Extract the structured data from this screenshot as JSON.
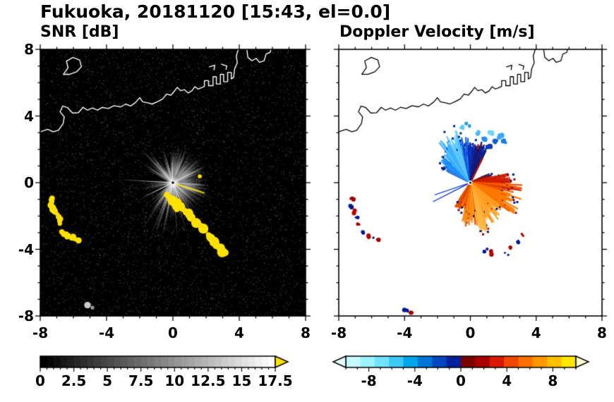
{
  "figure_title": "Fukuoka, 20181120 [15:43, el=0.0]",
  "panels": [
    {
      "id": "snr",
      "title": "SNR [dB]",
      "x_ticks": [
        {
          "label": "-8",
          "value": -8
        },
        {
          "label": "-4",
          "value": -4
        },
        {
          "label": "0",
          "value": 0
        },
        {
          "label": "4",
          "value": 4
        },
        {
          "label": "8",
          "value": 8
        }
      ],
      "y_ticks": [
        {
          "label": "8",
          "value": 8
        },
        {
          "label": "4",
          "value": 4
        },
        {
          "label": "0",
          "value": 0
        },
        {
          "label": "-4",
          "value": -4
        },
        {
          "label": "-8",
          "value": -8
        }
      ],
      "colorbar": {
        "min": 0,
        "max": 17.5,
        "minor_step": 0.5,
        "style": "grayscale",
        "ticks": [
          {
            "label": "0",
            "value": 0
          },
          {
            "label": "2.5",
            "value": 2.5
          },
          {
            "label": "5",
            "value": 5
          },
          {
            "label": "7.5",
            "value": 7.5
          },
          {
            "label": "10",
            "value": 10
          },
          {
            "label": "12.5",
            "value": 12.5
          },
          {
            "label": "15",
            "value": 15
          },
          {
            "label": "17.5",
            "value": 17.5
          }
        ],
        "over_arrow_color": "#ffe100"
      }
    },
    {
      "id": "doppler",
      "title": "Doppler Velocity [m/s]",
      "x_ticks": [
        {
          "label": "-8",
          "value": -8
        },
        {
          "label": "-4",
          "value": -4
        },
        {
          "label": "0",
          "value": 0
        },
        {
          "label": "4",
          "value": 4
        },
        {
          "label": "8",
          "value": 8
        }
      ],
      "y_ticks": [],
      "colorbar": {
        "min": -10,
        "max": 10,
        "minor_step": 1,
        "style": "segmented",
        "ticks": [
          {
            "label": "-8",
            "value": -8
          },
          {
            "label": "-4",
            "value": -4
          },
          {
            "label": "0",
            "value": 0
          },
          {
            "label": "4",
            "value": 4
          },
          {
            "label": "8",
            "value": 8
          }
        ],
        "segment_colors": [
          "#c8fbff",
          "#9ef2ff",
          "#6fe3ff",
          "#3ec9f5",
          "#00a6e8",
          "#0077d8",
          "#0047c0",
          "#001f9e",
          "#7a0000",
          "#a80000",
          "#d81800",
          "#f04800",
          "#ff7000",
          "#ff9800",
          "#ffc000",
          "#ffe800"
        ],
        "under_arrow_color": "#e8feff",
        "over_arrow_color": "#fffbd2"
      }
    }
  ],
  "map_overlay": {
    "coastline_paths": [
      [
        [
          -8,
          3.05
        ],
        [
          -7.55,
          3.2
        ],
        [
          -7.2,
          3.05
        ],
        [
          -6.9,
          3.15
        ],
        [
          -6.62,
          3.55
        ],
        [
          -6.55,
          3.95
        ],
        [
          -6.8,
          4.25
        ],
        [
          -6.65,
          4.6
        ],
        [
          -6.35,
          4.5
        ],
        [
          -6.05,
          4.18
        ],
        [
          -5.7,
          4.2
        ],
        [
          -5.42,
          4.52
        ],
        [
          -5.15,
          4.35
        ],
        [
          -4.85,
          4.48
        ],
        [
          -4.55,
          4.35
        ],
        [
          -4.25,
          4.52
        ],
        [
          -3.9,
          4.45
        ],
        [
          -3.55,
          4.62
        ],
        [
          -3.15,
          4.55
        ],
        [
          -2.85,
          4.72
        ],
        [
          -2.55,
          4.6
        ],
        [
          -2.25,
          4.82
        ],
        [
          -2.0,
          5.1
        ],
        [
          -1.82,
          4.85
        ],
        [
          -1.55,
          4.8
        ],
        [
          -1.25,
          4.72
        ],
        [
          -0.95,
          4.85
        ],
        [
          -0.62,
          5.02
        ],
        [
          -0.38,
          5.32
        ],
        [
          -0.12,
          5.25
        ],
        [
          0.08,
          5.48
        ],
        [
          0.26,
          5.72
        ],
        [
          0.46,
          5.52
        ],
        [
          0.7,
          5.58
        ],
        [
          0.92,
          5.38
        ],
        [
          1.15,
          5.52
        ],
        [
          1.32,
          5.76
        ],
        [
          1.52,
          5.62
        ],
        [
          1.72,
          5.7
        ],
        [
          1.9,
          5.78
        ],
        [
          1.9,
          6.12
        ],
        [
          2.15,
          6.12
        ],
        [
          2.15,
          5.82
        ],
        [
          2.42,
          5.82
        ],
        [
          2.42,
          6.36
        ],
        [
          2.62,
          6.36
        ],
        [
          2.62,
          5.92
        ],
        [
          2.86,
          5.92
        ],
        [
          2.86,
          6.5
        ],
        [
          3.06,
          6.5
        ],
        [
          3.06,
          6.06
        ],
        [
          3.3,
          6.06
        ],
        [
          3.3,
          6.62
        ],
        [
          3.52,
          6.62
        ],
        [
          3.52,
          6.22
        ],
        [
          3.66,
          6.32
        ],
        [
          3.72,
          6.82
        ],
        [
          3.88,
          7.2
        ],
        [
          3.82,
          7.6
        ],
        [
          3.96,
          8.05
        ]
      ],
      [
        [
          -6.6,
          6.5
        ],
        [
          -6.32,
          6.9
        ],
        [
          -6.42,
          7.3
        ],
        [
          -6.02,
          7.52
        ],
        [
          -5.62,
          7.36
        ],
        [
          -5.52,
          6.96
        ],
        [
          -5.8,
          6.66
        ],
        [
          -6.22,
          6.5
        ],
        [
          -6.6,
          6.5
        ]
      ],
      [
        [
          4.45,
          8.05
        ],
        [
          4.52,
          7.52
        ],
        [
          4.76,
          7.32
        ],
        [
          5.02,
          7.46
        ],
        [
          5.22,
          7.22
        ],
        [
          5.5,
          7.32
        ],
        [
          5.62,
          7.72
        ],
        [
          5.86,
          7.82
        ],
        [
          5.92,
          8.05
        ]
      ],
      [
        [
          2.2,
          6.95
        ],
        [
          2.52,
          7.05
        ],
        [
          2.48,
          6.78
        ]
      ],
      [
        [
          2.95,
          7.1
        ],
        [
          3.25,
          7.0
        ],
        [
          3.2,
          6.8
        ]
      ]
    ]
  },
  "chart_data": [
    {
      "type": "heatmap",
      "title": "SNR [dB]",
      "xlim": [
        -8,
        8
      ],
      "ylim": [
        -8,
        8
      ],
      "x_tick_values": [
        -8,
        -4,
        0,
        4,
        8
      ],
      "y_tick_values": [
        -8,
        -4,
        0,
        4,
        8
      ],
      "radar_center": [
        0,
        0
      ],
      "colorbar": {
        "min": 0,
        "max": 17.5,
        "major_ticks": [
          0,
          2.5,
          5,
          7.5,
          10,
          12.5,
          15,
          17.5
        ],
        "colormap": "black-to-white grayscale, yellow over-range arrow"
      },
      "description": "Radar PPI of SNR at elevation 0.0 deg: grayscale echo fan radiating from the radar at (0,0) over a black speckle-noise background; saturated yellow ground-clutter arcs southeast of the radar from about (-0.4,-0.8) to (3.2,-4.3) and to the west near (-7.3,-1) to (-5.6,-3.4); coastline drawn in white along the north.",
      "clutter_chains": [
        {
          "pts": [
            [
              -0.4,
              -0.75
            ],
            [
              0.0,
              -1.05
            ],
            [
              0.35,
              -1.3
            ],
            [
              0.7,
              -1.6
            ],
            [
              1.0,
              -1.95
            ],
            [
              1.3,
              -2.3
            ],
            [
              1.6,
              -2.55
            ],
            [
              1.95,
              -2.9
            ],
            [
              2.3,
              -3.3
            ],
            [
              2.6,
              -3.7
            ],
            [
              2.9,
              -4.05
            ],
            [
              3.15,
              -4.25
            ]
          ],
          "w": 0.24
        },
        {
          "pts": [
            [
              0.05,
              -1.35
            ],
            [
              0.3,
              -1.62
            ]
          ],
          "w": 0.16
        },
        {
          "pts": [
            [
              -7.25,
              -0.95
            ],
            [
              -7.38,
              -1.3
            ],
            [
              -7.2,
              -1.65
            ],
            [
              -6.95,
              -1.9
            ],
            [
              -6.8,
              -2.2
            ],
            [
              -6.85,
              -2.5
            ]
          ],
          "w": 0.17
        },
        {
          "pts": [
            [
              -6.7,
              -3.0
            ],
            [
              -6.4,
              -3.2
            ],
            [
              -6.1,
              -3.25
            ],
            [
              -5.85,
              -3.45
            ],
            [
              -5.6,
              -3.4
            ]
          ],
          "w": 0.15
        }
      ],
      "spots": [
        {
          "x": 1.62,
          "y": 0.38,
          "r": 0.12,
          "color": "#ffe100"
        },
        {
          "x": -5.15,
          "y": -7.35,
          "r": 0.2,
          "color": "#cccccc"
        },
        {
          "x": -4.85,
          "y": -7.5,
          "r": 0.11,
          "color": "#999999"
        }
      ],
      "yellow_ray": {
        "a0": {
          "x": 0.25,
          "y": -0.1
        },
        "a1": {
          "x": 1.9,
          "y": -0.62
        }
      }
    },
    {
      "type": "heatmap",
      "title": "Doppler Velocity [m/s]",
      "xlim": [
        -8,
        8
      ],
      "ylim": [
        -8,
        8
      ],
      "x_tick_values": [
        -8,
        -4,
        0,
        4,
        8
      ],
      "y_tick_values": [
        -8,
        -4,
        0,
        4,
        8
      ],
      "radar_center": [
        0,
        0
      ],
      "colorbar": {
        "min": -10,
        "max": 10,
        "major_ticks": [
          -8,
          -4,
          0,
          4,
          8
        ],
        "colormap": "pale-cyan/blue/navy for negative velocities, dark-red/red/orange/yellow for positive"
      },
      "description": "Doppler velocity fan: negative (light blue to navy, roughly -2 to -7 m/s) echoes north to northwest of the radar with darkest navy just east of north; positive (red through orange to yellow, roughly +3 to +9 m/s) echoes east through south; near-zero clutter specks (alternating dark red / navy) west and south-southeast matching the SNR clutter; coastline in black.",
      "sectors": [
        {
          "a0": 296,
          "a1": 305,
          "color": "#2f7de0",
          "rMax": 1.7
        },
        {
          "a0": 305,
          "a1": 317,
          "color": "#1e90ff",
          "rMax": 2.3
        },
        {
          "a0": 317,
          "a1": 333,
          "color": "#3fb2ff",
          "rMax": 3.0
        },
        {
          "a0": 333,
          "a1": 347,
          "color": "#63ccff",
          "rMax": 3.15
        },
        {
          "a0": 347,
          "a1": 357,
          "color": "#1565e8",
          "rMax": 2.6
        },
        {
          "a0": 357,
          "a1": 369,
          "color": "#0a2cb0",
          "rMax": 2.25
        },
        {
          "a0": 369,
          "a1": 387,
          "color": "#061a80",
          "rMax": 2.35
        },
        {
          "a0": 64,
          "a1": 76,
          "color": "#b01000",
          "rMax": 1.3
        },
        {
          "a0": 76,
          "a1": 92,
          "color": "#d02000",
          "rMax": 2.3
        },
        {
          "a0": 92,
          "a1": 106,
          "color": "#f25500",
          "rMax": 2.9
        },
        {
          "a0": 106,
          "a1": 128,
          "color": "#ff7d00",
          "rMax": 3.0
        },
        {
          "a0": 128,
          "a1": 150,
          "color": "#ffa125",
          "rMax": 2.6
        },
        {
          "a0": 150,
          "a1": 170,
          "color": "#ffb640",
          "rMax": 2.9
        },
        {
          "a0": 170,
          "a1": 192,
          "color": "#ff8d10",
          "rMax": 2.45
        },
        {
          "a0": 192,
          "a1": 214,
          "color": "#e85000",
          "rMax": 1.6
        }
      ],
      "fragments": [
        {
          "x": 0.55,
          "y": 3.0,
          "c": "#45b8ff"
        },
        {
          "x": 0.9,
          "y": 2.7,
          "c": "#2090ff"
        },
        {
          "x": 1.25,
          "y": 2.95,
          "c": "#70d4ff"
        },
        {
          "x": 1.5,
          "y": 2.5,
          "c": "#1060d0"
        },
        {
          "x": 1.85,
          "y": 2.75,
          "c": "#3aa8ff"
        },
        {
          "x": 2.1,
          "y": 2.45,
          "c": "#1878e8"
        },
        {
          "x": 1.15,
          "y": 2.2,
          "c": "#0a38b8"
        },
        {
          "x": -0.5,
          "y": 3.25,
          "c": "#55c8ff"
        },
        {
          "x": -0.15,
          "y": 3.45,
          "c": "#2a9ae8"
        }
      ],
      "specks": [
        {
          "x": -7.2,
          "y": -1.0,
          "c": "#a80000"
        },
        {
          "x": -7.32,
          "y": -1.4,
          "c": "#001a90"
        },
        {
          "x": -7.1,
          "y": -1.78,
          "c": "#c00000"
        },
        {
          "x": -6.92,
          "y": -2.12,
          "c": "#001a90"
        },
        {
          "x": -6.85,
          "y": -2.48,
          "c": "#a80000"
        },
        {
          "x": -6.6,
          "y": -3.0,
          "c": "#001a90"
        },
        {
          "x": -6.28,
          "y": -3.2,
          "c": "#b80000"
        },
        {
          "x": -5.98,
          "y": -3.3,
          "c": "#001a90"
        },
        {
          "x": -5.68,
          "y": -3.45,
          "c": "#a80000"
        },
        {
          "x": 0.95,
          "y": -4.05,
          "c": "#001a90"
        },
        {
          "x": 1.32,
          "y": -4.2,
          "c": "#b00000"
        },
        {
          "x": 2.2,
          "y": -4.3,
          "c": "#001a90"
        },
        {
          "x": 2.52,
          "y": -3.92,
          "c": "#b00000"
        },
        {
          "x": 2.85,
          "y": -3.5,
          "c": "#001a90"
        },
        {
          "x": 3.1,
          "y": -3.1,
          "c": "#b00000"
        },
        {
          "x": -3.9,
          "y": -7.7,
          "c": "#001a90"
        },
        {
          "x": -3.55,
          "y": -7.8,
          "c": "#a80000"
        }
      ],
      "thin_rays": [
        {
          "az": 243,
          "len": 2.55,
          "c": "#0030c8"
        },
        {
          "az": 251,
          "len": 2.3,
          "c": "#1048d8"
        },
        {
          "az": 207,
          "len": 1.5,
          "c": "#c84000"
        }
      ]
    }
  ]
}
